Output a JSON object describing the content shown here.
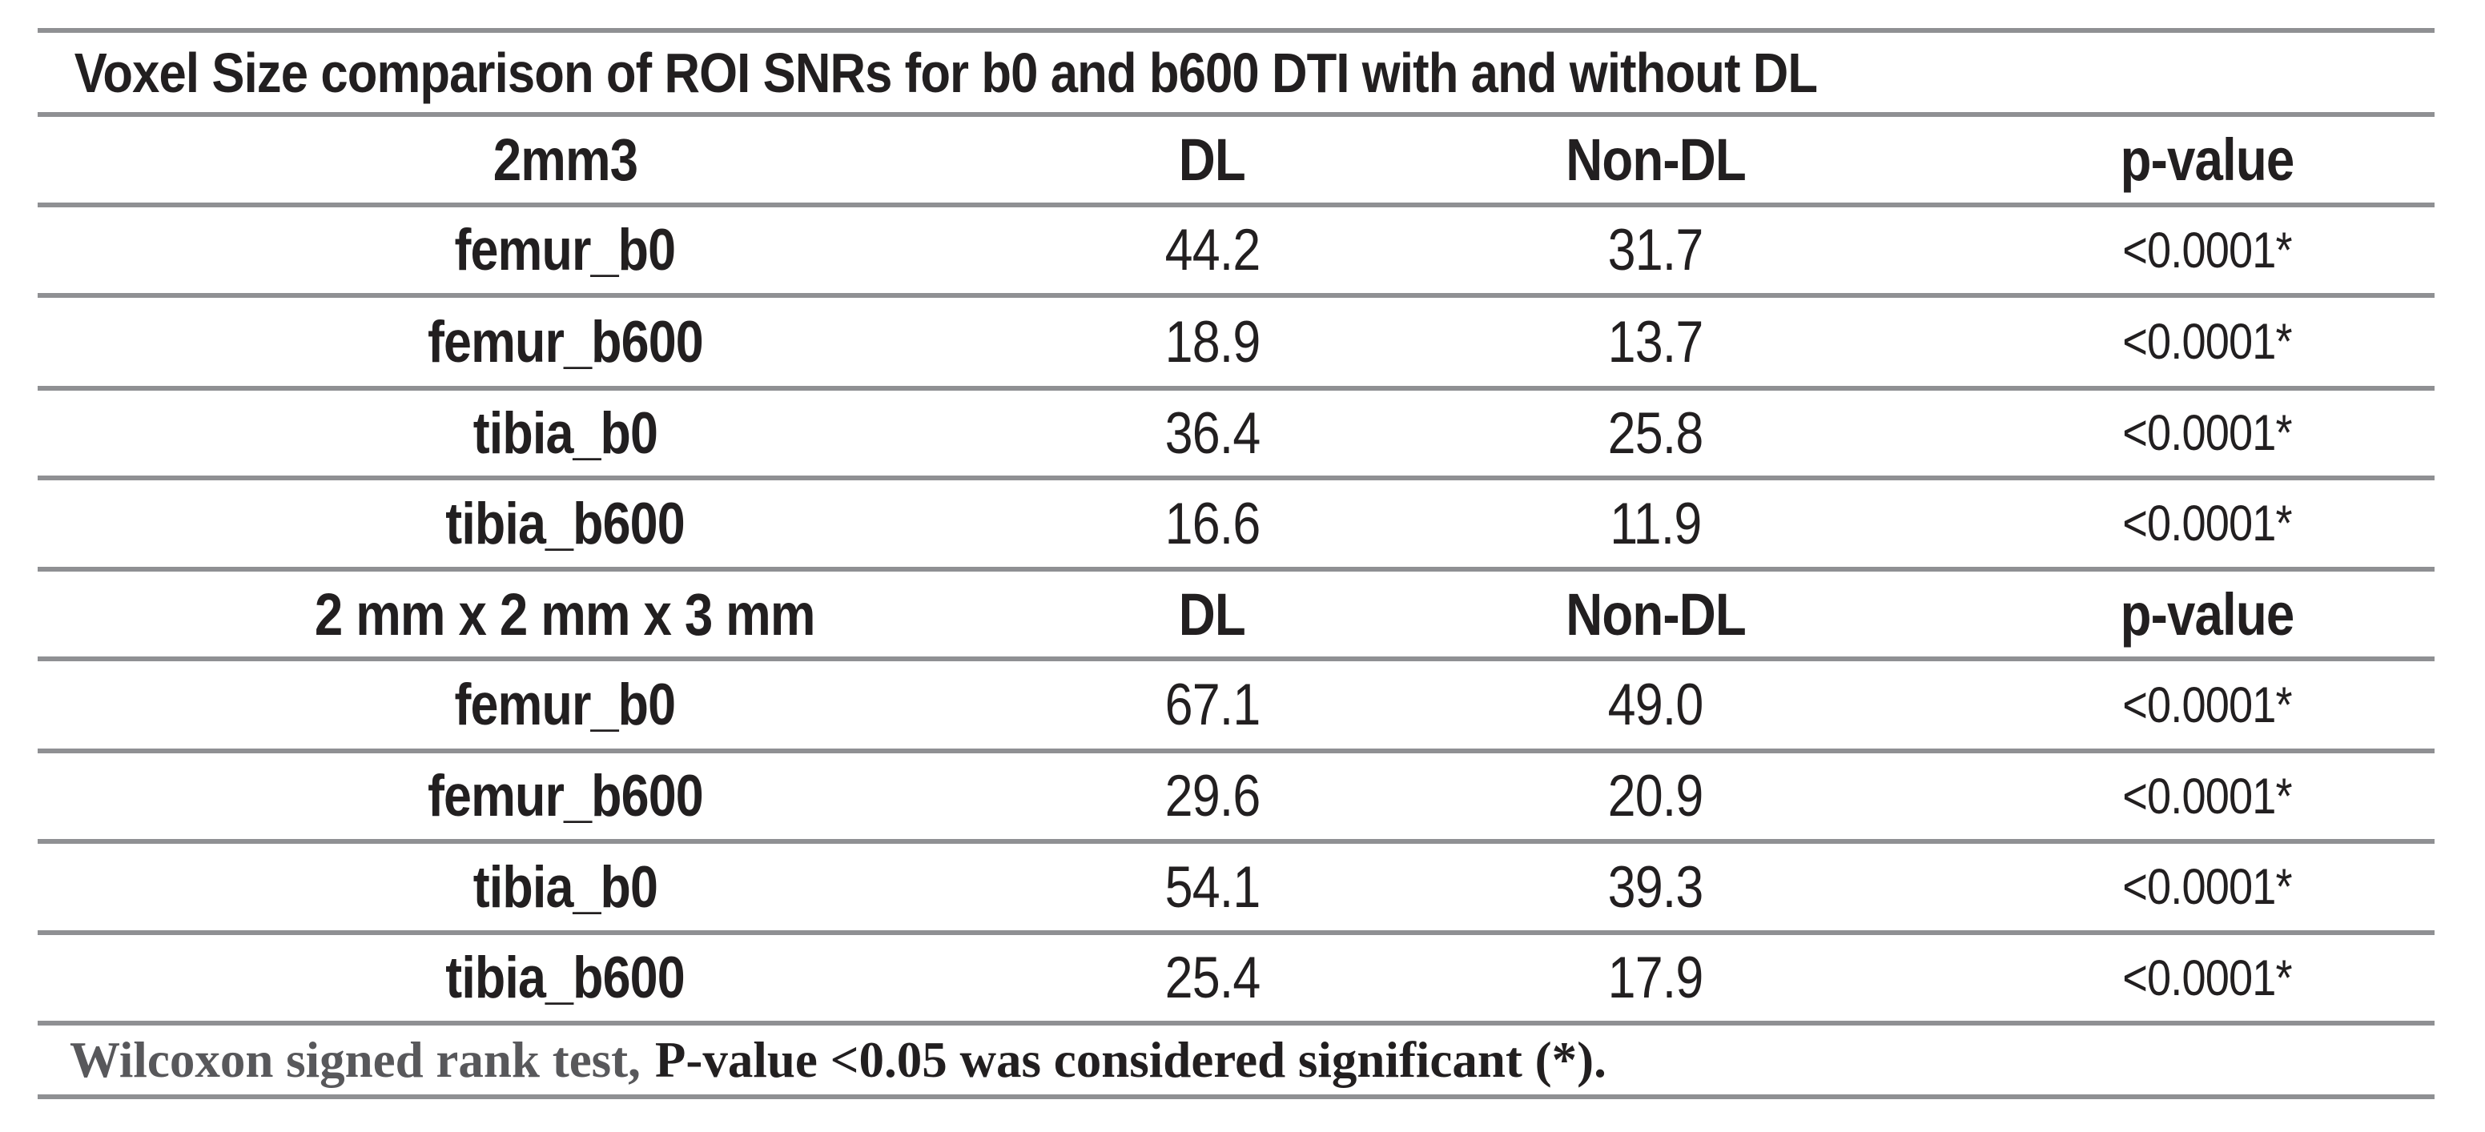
{
  "table": {
    "title": "Voxel Size comparison of ROI SNRs for b0 and b600 DTI with and without DL",
    "columns": [
      "DL",
      "Non-DL",
      "p-value"
    ],
    "sections": [
      {
        "header": {
          "size_label": "2mm3",
          "dl": "DL",
          "non_dl": "Non-DL",
          "p": "p-value"
        },
        "rows": [
          {
            "label": "femur_b0",
            "dl": "44.2",
            "non_dl": "31.7",
            "p": "<0.0001*"
          },
          {
            "label": "femur_b600",
            "dl": "18.9",
            "non_dl": "13.7",
            "p": "<0.0001*"
          },
          {
            "label": "tibia_b0",
            "dl": "36.4",
            "non_dl": "25.8",
            "p": "<0.0001*"
          },
          {
            "label": "tibia_b600",
            "dl": "16.6",
            "non_dl": "11.9",
            "p": "<0.0001*"
          }
        ]
      },
      {
        "header": {
          "size_label": "2 mm x 2 mm x 3 mm",
          "dl": "DL",
          "non_dl": "Non-DL",
          "p": "p-value"
        },
        "rows": [
          {
            "label": "femur_b0",
            "dl": "67.1",
            "non_dl": "49.0",
            "p": "<0.0001*"
          },
          {
            "label": "femur_b600",
            "dl": "29.6",
            "non_dl": "20.9",
            "p": "<0.0001*"
          },
          {
            "label": "tibia_b0",
            "dl": "54.1",
            "non_dl": "39.3",
            "p": "<0.0001*"
          },
          {
            "label": "tibia_b600",
            "dl": "25.4",
            "non_dl": "17.9",
            "p": "<0.0001*"
          }
        ]
      }
    ],
    "footnote": {
      "part1": "Wilcoxon signed rank test,",
      "part2": "P-value <0.05 was considered significant (*)."
    }
  },
  "colors": {
    "rule": "#8f9093",
    "text": "#221f20",
    "footnote_gray": "#58585b"
  }
}
